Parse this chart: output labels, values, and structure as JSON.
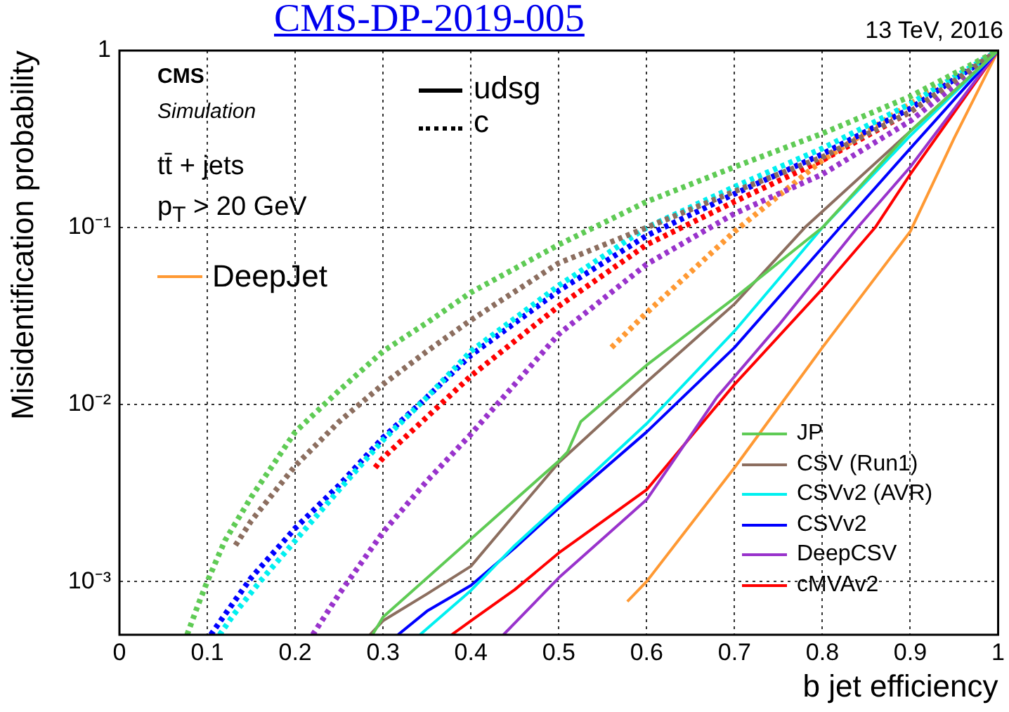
{
  "chart_data": {
    "type": "line",
    "title": "CMS-DP-2019-005",
    "subtitle": "13 TeV, 2016",
    "xlabel": "b jet efficiency",
    "ylabel": "Misidentification probability",
    "annotations": [
      "CMS",
      "Simulation",
      "tt̄ + jets",
      "p$_{T}$ > 20 GeV",
      "udsg",
      "c"
    ],
    "log": "y",
    "grid": true,
    "legend": "bottom right",
    "marker": "none",
    "xlim": [
      0,
      1
    ],
    "xticks": [
      0,
      0.1,
      0.2,
      0.3,
      0.4,
      0.5,
      0.6,
      0.7,
      0.8,
      0.9,
      1
    ],
    "ylim": [
      0.0005,
      1
    ],
    "yticks": [
      {
        "value": 0.001,
        "label": "10⁻³"
      },
      {
        "value": 0.01,
        "label": "10⁻²"
      },
      {
        "value": 0.1,
        "label": "10⁻¹"
      },
      1
    ],
    "series": [
      {
        "name": "JP",
        "color": "#5fcb55",
        "line_style": "solid",
        "x": [
          0.288,
          0.3,
          0.5,
          0.51,
          0.525,
          0.6,
          0.7,
          0.8,
          0.9,
          1
        ],
        "values": [
          0.0005,
          0.00063,
          0.0048,
          0.0054,
          0.008,
          0.0167,
          0.04,
          0.1,
          0.35,
          1
        ]
      },
      {
        "name": "CSV (Run1)",
        "color": "#8c6e5f",
        "line_style": "solid",
        "x": [
          0.285,
          0.3,
          0.35,
          0.4,
          0.45,
          0.5,
          0.6,
          0.7,
          0.78,
          0.9,
          1
        ],
        "values": [
          0.0005,
          0.0006,
          0.00085,
          0.00122,
          0.0024,
          0.0047,
          0.0134,
          0.037,
          0.1,
          0.35,
          1
        ]
      },
      {
        "name": "CSVv2 (AVR)",
        "color": "#00f0f0",
        "line_style": "solid",
        "x": [
          0.342,
          0.4,
          0.45,
          0.5,
          0.6,
          0.7,
          0.8,
          0.9,
          1
        ],
        "values": [
          0.0005,
          0.00089,
          0.0016,
          0.0027,
          0.0078,
          0.026,
          0.1,
          0.33,
          1
        ]
      },
      {
        "name": "CSVv2",
        "color": "#0000ff",
        "line_style": "solid",
        "x": [
          0.317,
          0.35,
          0.4,
          0.45,
          0.5,
          0.6,
          0.7,
          0.82,
          0.9,
          1
        ],
        "values": [
          0.0005,
          0.00068,
          0.00095,
          0.00155,
          0.0026,
          0.007,
          0.021,
          0.1,
          0.28,
          1
        ]
      },
      {
        "name": "DeepCSV",
        "color": "#9933cc",
        "line_style": "solid",
        "x": [
          0.437,
          0.5,
          0.6,
          0.68,
          0.75,
          0.84,
          0.9,
          1
        ],
        "values": [
          0.0005,
          0.00105,
          0.0029,
          0.011,
          0.028,
          0.1,
          0.22,
          1
        ]
      },
      {
        "name": "cMVAv2",
        "color": "#ff0000",
        "line_style": "solid",
        "x": [
          0.378,
          0.4,
          0.45,
          0.5,
          0.6,
          0.7,
          0.8,
          0.86,
          0.9,
          1
        ],
        "values": [
          0.0005,
          0.0006,
          0.0009,
          0.00145,
          0.0033,
          0.013,
          0.045,
          0.1,
          0.2,
          1
        ]
      },
      {
        "name": "DeepJet",
        "color": "#ff9933",
        "line_style": "solid",
        "x": [
          0.578,
          0.6,
          0.7,
          0.8,
          0.9,
          0.95,
          1
        ],
        "values": [
          0.00077,
          0.001,
          0.0044,
          0.021,
          0.095,
          0.32,
          1
        ]
      },
      {
        "color": "#5fcb55",
        "line_style": "dotted",
        "x": [
          0.077,
          0.09,
          0.1,
          0.12,
          0.15,
          0.2,
          0.25,
          0.3,
          0.35,
          0.4,
          0.5,
          0.6,
          0.7,
          0.8,
          0.9,
          1
        ],
        "values": [
          0.0005,
          0.00075,
          0.001,
          0.0017,
          0.003,
          0.007,
          0.012,
          0.02,
          0.029,
          0.043,
          0.08,
          0.14,
          0.22,
          0.34,
          0.55,
          1
        ]
      },
      {
        "color": "#8c6e5f",
        "line_style": "dotted",
        "x": [
          0.132,
          0.15,
          0.2,
          0.25,
          0.3,
          0.35,
          0.4,
          0.5,
          0.6,
          0.7,
          0.8,
          0.9,
          1
        ],
        "values": [
          0.0016,
          0.0022,
          0.0045,
          0.008,
          0.013,
          0.02,
          0.03,
          0.063,
          0.1,
          0.16,
          0.25,
          0.45,
          1
        ]
      },
      {
        "color": "#00f0f0",
        "line_style": "dotted",
        "x": [
          0.114,
          0.13,
          0.16,
          0.2,
          0.25,
          0.3,
          0.35,
          0.4,
          0.5,
          0.6,
          0.7,
          0.8,
          0.9,
          1
        ],
        "values": [
          0.0005,
          0.00065,
          0.001,
          0.0017,
          0.0033,
          0.0063,
          0.011,
          0.02,
          0.047,
          0.1,
          0.17,
          0.28,
          0.5,
          1
        ]
      },
      {
        "color": "#0000ff",
        "line_style": "dotted",
        "x": [
          0.104,
          0.12,
          0.15,
          0.2,
          0.25,
          0.3,
          0.35,
          0.4,
          0.5,
          0.6,
          0.7,
          0.8,
          0.9,
          1
        ],
        "values": [
          0.0005,
          0.00065,
          0.00105,
          0.002,
          0.0035,
          0.0065,
          0.011,
          0.019,
          0.044,
          0.09,
          0.155,
          0.26,
          0.47,
          1
        ]
      },
      {
        "color": "#9933cc",
        "line_style": "dotted",
        "x": [
          0.22,
          0.25,
          0.3,
          0.35,
          0.4,
          0.5,
          0.6,
          0.7,
          0.8,
          0.9,
          1
        ],
        "values": [
          0.0005,
          0.00085,
          0.0019,
          0.0037,
          0.0068,
          0.025,
          0.062,
          0.12,
          0.2,
          0.4,
          1
        ]
      },
      {
        "color": "#ff0000",
        "line_style": "dotted",
        "x": [
          0.291,
          0.3,
          0.35,
          0.4,
          0.5,
          0.6,
          0.7,
          0.8,
          0.9,
          1
        ],
        "values": [
          0.0044,
          0.005,
          0.0085,
          0.0145,
          0.036,
          0.08,
          0.14,
          0.24,
          0.45,
          1
        ]
      },
      {
        "color": "#ff9933",
        "line_style": "dotted",
        "x": [
          0.56,
          0.6,
          0.7,
          0.8,
          0.9,
          1
        ],
        "values": [
          0.021,
          0.033,
          0.095,
          0.24,
          0.5,
          1
        ]
      }
    ]
  }
}
